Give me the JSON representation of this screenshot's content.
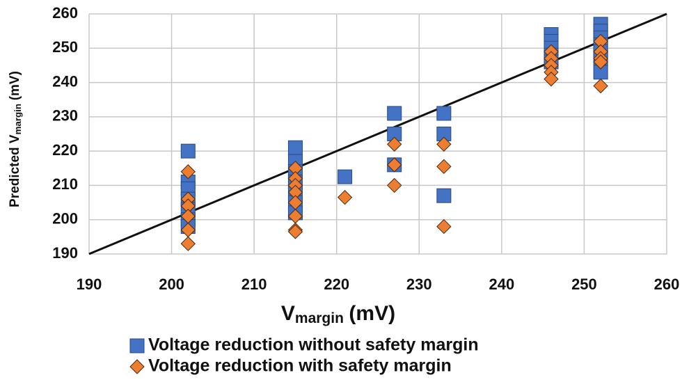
{
  "chart_data": {
    "type": "scatter",
    "xlabel": {
      "main": "V",
      "sub": "margin",
      "unit": "(mV)"
    },
    "ylabel": {
      "main": "Predicted V",
      "sub": "margin",
      "unit": "(mV)"
    },
    "xlim": [
      190,
      260
    ],
    "xticks": [
      190,
      200,
      210,
      220,
      230,
      240,
      250,
      260
    ],
    "ylim": [
      190,
      260
    ],
    "yticks": [
      190,
      200,
      210,
      220,
      230,
      240,
      250,
      260
    ],
    "grid": true,
    "identity_line": true,
    "legend": "bottom",
    "series": [
      {
        "name": "Voltage reduction without safety margin",
        "color": "#4472c4",
        "marker": "square",
        "x": [
          202,
          202,
          202,
          202,
          202,
          202,
          202,
          215,
          215,
          215,
          215,
          215,
          215,
          215,
          221,
          227,
          227,
          227,
          233,
          233,
          233,
          246,
          246,
          246,
          246,
          246,
          252,
          252,
          252,
          252,
          252,
          252,
          252
        ],
        "values": [
          220,
          211,
          209,
          206,
          203,
          200,
          198,
          221,
          217,
          214,
          211,
          208,
          205,
          202,
          212.5,
          231,
          225,
          216,
          231,
          225,
          207,
          254,
          252,
          250,
          248,
          246,
          257,
          255,
          253,
          251,
          249,
          247,
          243
        ]
      },
      {
        "name": "Voltage reduction with safety margin",
        "color": "#ed7d31",
        "marker": "diamond",
        "x": [
          202,
          202,
          202,
          202,
          202,
          202,
          215,
          215,
          215,
          215,
          215,
          215,
          215,
          215,
          221,
          227,
          227,
          227,
          233,
          233,
          233,
          246,
          246,
          246,
          246,
          246,
          252,
          252,
          252,
          252,
          252
        ],
        "values": [
          214,
          206,
          204,
          201,
          197,
          193,
          215,
          212,
          210,
          208,
          205,
          201,
          197,
          196.5,
          206.5,
          222,
          216,
          210,
          222,
          215.5,
          198,
          249,
          247,
          245,
          243,
          241,
          252,
          249,
          247,
          246,
          239
        ]
      }
    ]
  }
}
